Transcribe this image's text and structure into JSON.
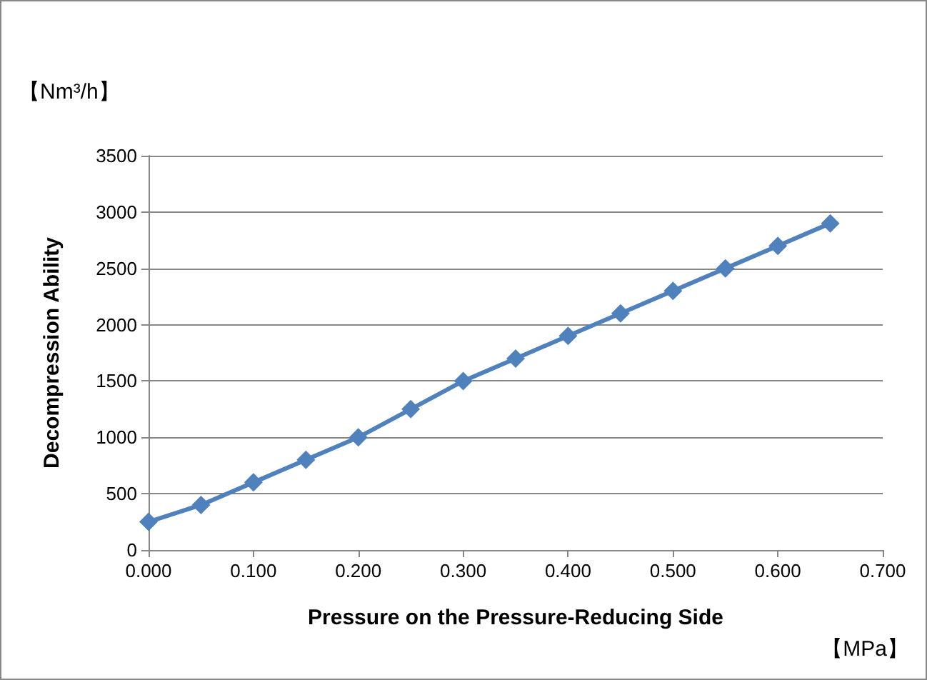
{
  "chart_data": {
    "type": "line",
    "xlabel": "Pressure on the Pressure-Reducing Side",
    "ylabel": "Decompression Ability",
    "annotations": [
      "【Nm³/h】",
      "【MPa】"
    ],
    "x": [
      0,
      0.05,
      0.1,
      0.15,
      0.2,
      0.25,
      0.3,
      0.35,
      0.4,
      0.45,
      0.5,
      0.55,
      0.6,
      0.65
    ],
    "series": [
      {
        "color": "#4f81bd",
        "values": [
          250,
          400,
          600,
          800,
          1000,
          1250,
          1500,
          1700,
          1900,
          2100,
          2300,
          2500,
          2700,
          2900
        ]
      }
    ],
    "xlim": [
      0,
      0.7
    ],
    "xticks": [
      {
        "value": 0,
        "label": "0.000"
      },
      {
        "value": 0.1,
        "label": "0.100"
      },
      {
        "value": 0.2,
        "label": "0.200"
      },
      {
        "value": 0.3,
        "label": "0.300"
      },
      {
        "value": 0.4,
        "label": "0.400"
      },
      {
        "value": 0.5,
        "label": "0.500"
      },
      {
        "value": 0.6,
        "label": "0.600"
      },
      {
        "value": 0.7,
        "label": "0.700"
      }
    ],
    "ylim": [
      0,
      3500
    ],
    "yticks": [
      0,
      500,
      1000,
      1500,
      2000,
      2500,
      3000,
      3500
    ],
    "grid": "y",
    "marker": "diamond",
    "line_style": "solid"
  }
}
